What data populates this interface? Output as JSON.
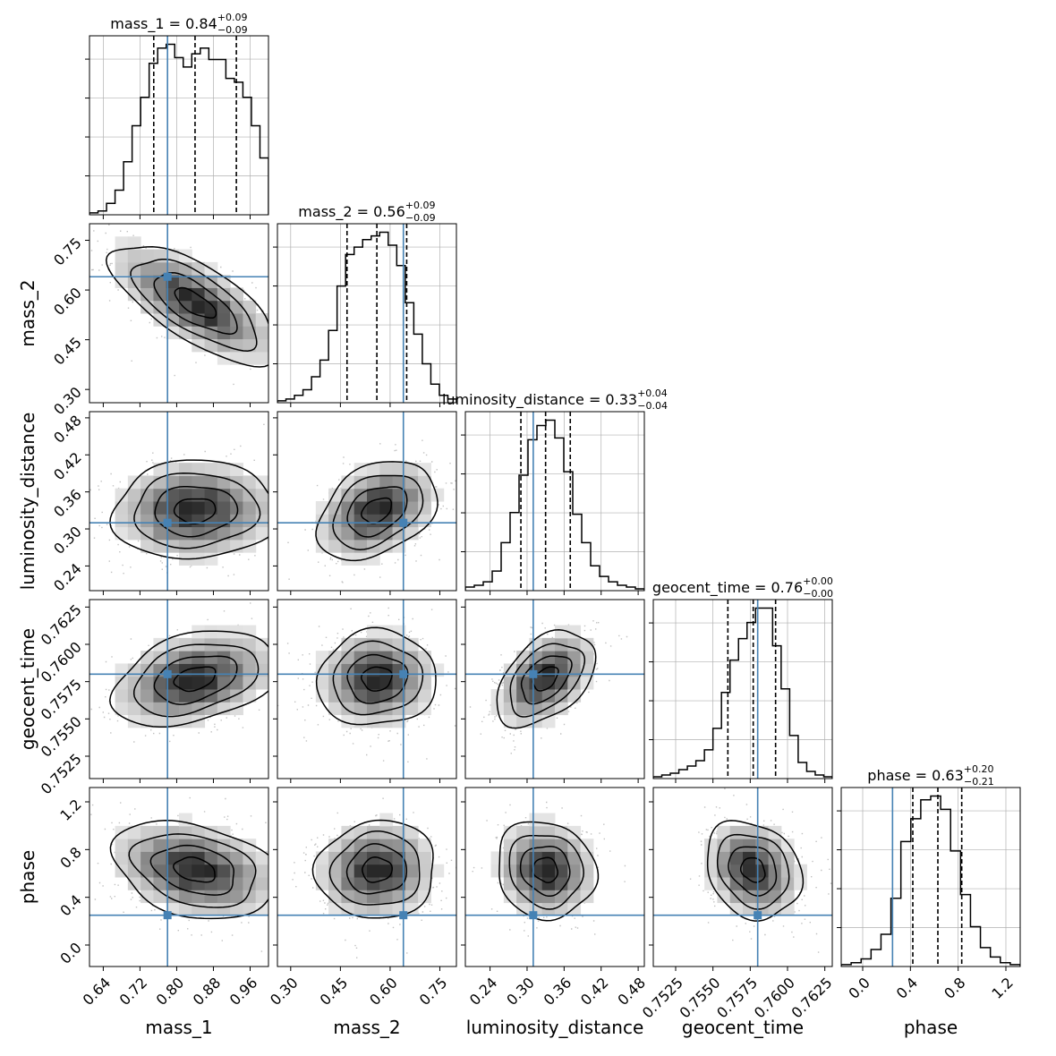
{
  "chart_data": {
    "type": "corner",
    "parameters": [
      "mass_1",
      "mass_2",
      "luminosity_distance",
      "geocent_time",
      "phase"
    ],
    "axis_labels": [
      "mass_1",
      "mass_2",
      "luminosity_distance",
      "geocent_time",
      "phase"
    ],
    "ranges": [
      [
        0.61,
        1.0
      ],
      [
        0.26,
        0.8
      ],
      [
        0.2,
        0.49
      ],
      [
        0.751,
        0.763
      ],
      [
        -0.18,
        1.32
      ]
    ],
    "ticks": [
      [
        "0.64",
        "0.72",
        "0.80",
        "0.88",
        "0.96"
      ],
      [
        "0.30",
        "0.45",
        "0.60",
        "0.75"
      ],
      [
        "0.24",
        "0.30",
        "0.36",
        "0.42",
        "0.48"
      ],
      [
        "0.7525",
        "0.7550",
        "0.7575",
        "0.7600",
        "0.7625"
      ],
      [
        "0.0",
        "0.4",
        "0.8",
        "1.2"
      ]
    ],
    "truths": [
      0.78,
      0.64,
      0.31,
      0.758,
      0.25
    ],
    "titles": [
      {
        "param": "mass_1",
        "median": "0.84",
        "plus": "+0.09",
        "minus": "−0.09"
      },
      {
        "param": "mass_2",
        "median": "0.56",
        "plus": "+0.09",
        "minus": "−0.09"
      },
      {
        "param": "luminosity_distance",
        "median": "0.33",
        "plus": "+0.04",
        "minus": "−0.04"
      },
      {
        "param": "geocent_time",
        "median": "0.76",
        "plus": "+0.00",
        "minus": "−0.00"
      },
      {
        "param": "phase",
        "median": "0.63",
        "plus": "+0.20",
        "minus": "−0.21"
      }
    ],
    "quantiles": [
      [
        0.75,
        0.84,
        0.93
      ],
      [
        0.47,
        0.56,
        0.65
      ],
      [
        0.29,
        0.33,
        0.37
      ],
      [
        0.756,
        0.7577,
        0.7592
      ],
      [
        0.42,
        0.63,
        0.83
      ]
    ],
    "histograms": [
      [
        1,
        2,
        6,
        13,
        28,
        47,
        62,
        80,
        88,
        90,
        83,
        78,
        85,
        88,
        82,
        82,
        72,
        70,
        62,
        47,
        30
      ],
      [
        1,
        2,
        4,
        7,
        14,
        23,
        39,
        63,
        80,
        84,
        88,
        90,
        92,
        85,
        74,
        54,
        37,
        21,
        10,
        4,
        2
      ],
      [
        2,
        3,
        5,
        11,
        27,
        44,
        65,
        85,
        93,
        96,
        86,
        67,
        43,
        27,
        14,
        8,
        5,
        3,
        2,
        1
      ],
      [
        1,
        2,
        3,
        5,
        7,
        10,
        16,
        28,
        48,
        66,
        78,
        87,
        95,
        95,
        74,
        50,
        24,
        9,
        4,
        2,
        1
      ],
      [
        1,
        2,
        4,
        9,
        17,
        36,
        66,
        78,
        88,
        90,
        83,
        61,
        38,
        21,
        10,
        5,
        2,
        1
      ]
    ],
    "correlations": [
      [
        0,
        -0.7,
        0.05,
        0.35,
        -0.3
      ],
      [
        -0.7,
        0,
        0.35,
        0.05,
        0.05
      ],
      [
        0.05,
        0.35,
        0,
        0.45,
        -0.1
      ],
      [
        0.35,
        0.05,
        0.45,
        0,
        -0.2
      ],
      [
        -0.3,
        0.05,
        -0.1,
        -0.2,
        0
      ]
    ],
    "colors": {
      "truth": "#4682b4",
      "hist": "#000000",
      "points": "#b0b0b0",
      "grid": "#b0b0b0"
    }
  }
}
